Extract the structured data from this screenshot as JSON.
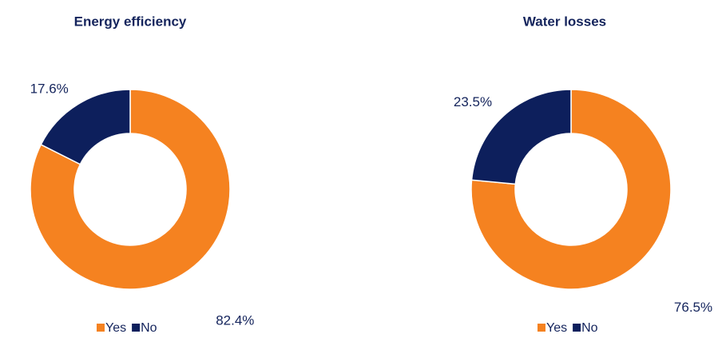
{
  "chart_data": [
    {
      "type": "pie",
      "donut": true,
      "title": "Energy efficiency",
      "categories": [
        "Yes",
        "No"
      ],
      "values": [
        82.4,
        17.6
      ],
      "value_labels": [
        "82.4%",
        "17.6%"
      ],
      "colors": [
        "#f58220",
        "#0d1f5c"
      ]
    },
    {
      "type": "pie",
      "donut": true,
      "title": "Water losses",
      "categories": [
        "Yes",
        "No"
      ],
      "values": [
        76.5,
        23.5
      ],
      "value_labels": [
        "76.5%",
        "23.5%"
      ],
      "colors": [
        "#f58220",
        "#0d1f5c"
      ]
    }
  ]
}
